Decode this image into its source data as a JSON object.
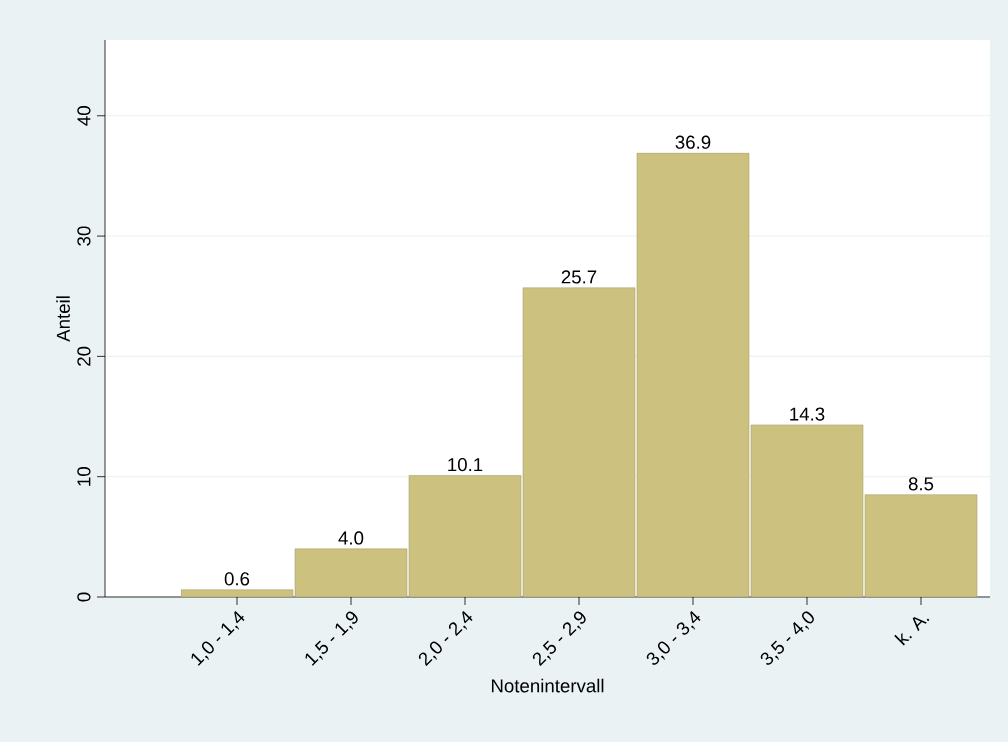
{
  "chart_data": {
    "type": "bar",
    "xlabel": "Notenintervall",
    "ylabel": "Anteil",
    "categories": [
      "1,0 - 1,4",
      "1,5 - 1,9",
      "2,0 - 2,4",
      "2,5 - 2,9",
      "3,0 - 3,4",
      "3,5 - 4,0",
      "k. A."
    ],
    "values": [
      0.6,
      4.0,
      10.1,
      25.7,
      36.9,
      14.3,
      8.5
    ],
    "color": "#cdc180",
    "ylim": [
      0,
      46.3
    ],
    "yticks": [
      0,
      10,
      20,
      30,
      40
    ],
    "grid": "y",
    "value_labels": [
      "0.6",
      "4.0",
      "10.1",
      "25.7",
      "36.9",
      "14.3",
      "8.5"
    ]
  }
}
